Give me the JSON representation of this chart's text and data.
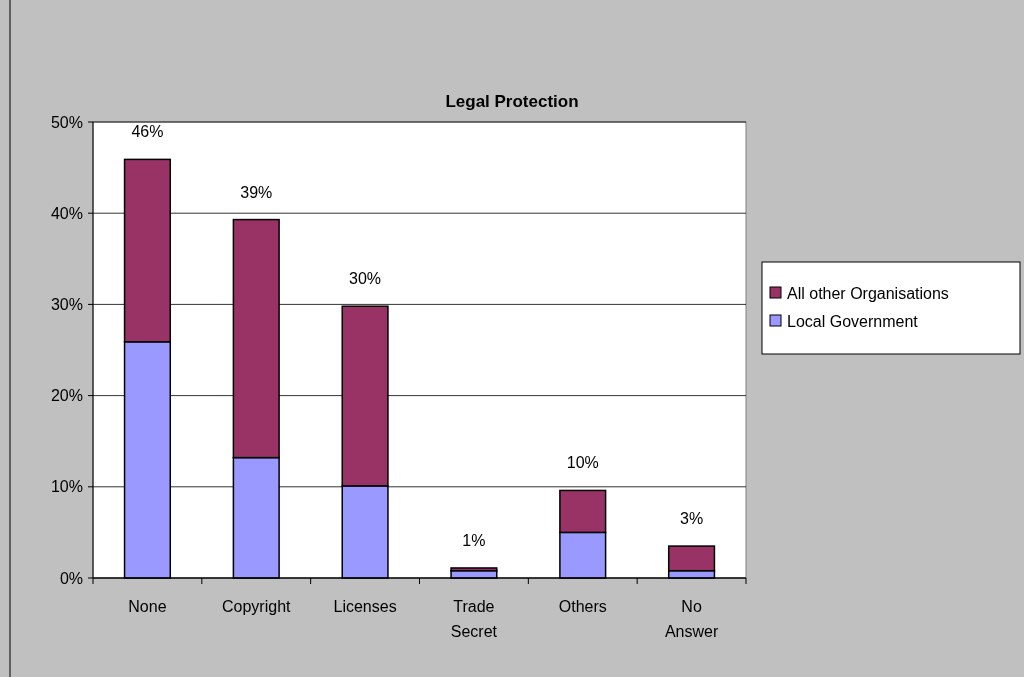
{
  "chart_data": {
    "type": "bar",
    "title": "Legal Protection",
    "categories": [
      "None",
      "Copyright",
      "Licenses",
      "Trade Secret",
      "Others",
      "No Answer"
    ],
    "stacked": true,
    "series": [
      {
        "name": "Local Government",
        "color": "#9999ff",
        "values": [
          25.9,
          13.2,
          10.1,
          0.8,
          5.0,
          0.8
        ]
      },
      {
        "name": "All other Organisations",
        "color": "#993366",
        "values": [
          20.0,
          26.1,
          19.7,
          0.3,
          4.6,
          2.7
        ]
      }
    ],
    "totals": [
      "46%",
      "39%",
      "30%",
      "1%",
      "10%",
      "3%"
    ],
    "ylim": [
      0,
      50
    ],
    "yticks": [
      {
        "value": 0,
        "label": "0%"
      },
      {
        "value": 10,
        "label": "10%"
      },
      {
        "value": 20,
        "label": "20%"
      },
      {
        "value": 30,
        "label": "30%"
      },
      {
        "value": 40,
        "label": "40%"
      },
      {
        "value": 50,
        "label": "50%"
      }
    ],
    "grid": "y",
    "legend": "right"
  }
}
